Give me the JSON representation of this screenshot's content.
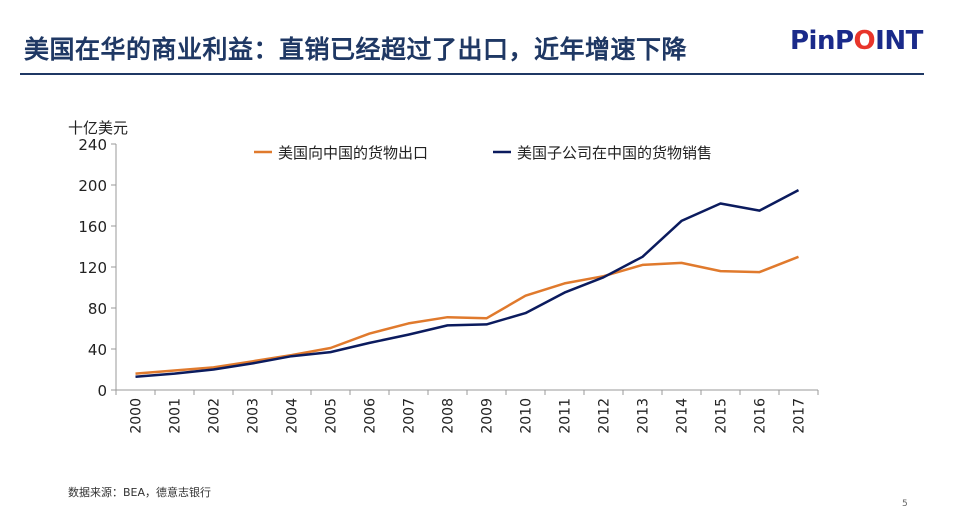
{
  "slide": {
    "title": "美国在华的商业利益：直销已经超过了出口，近年增速下降",
    "logo_prefix": "PinP",
    "logo_o": "O",
    "logo_suffix": "INT",
    "source": "数据来源：BEA，德意志银行",
    "page_number": "5"
  },
  "colors": {
    "title": "#1f3864",
    "exports": "#e07a2d",
    "affiliates": "#0b1b5e",
    "logo_blue": "#1a2a8a",
    "logo_red": "#e8352b"
  },
  "chart_data": {
    "type": "line",
    "title": "",
    "ylabel": "十亿美元",
    "xlabel": "",
    "ylim": [
      0,
      240
    ],
    "yticks": [
      0,
      40,
      80,
      120,
      160,
      200,
      240
    ],
    "grid": false,
    "legend_position": "top",
    "x": [
      "2000",
      "2001",
      "2002",
      "2003",
      "2004",
      "2005",
      "2006",
      "2007",
      "2008",
      "2009",
      "2010",
      "2011",
      "2012",
      "2013",
      "2014",
      "2015",
      "2016",
      "2017"
    ],
    "series": [
      {
        "name": "美国向中国的货物出口",
        "color": "#e07a2d",
        "values": [
          16,
          19,
          22,
          28,
          34,
          41,
          55,
          65,
          71,
          70,
          92,
          104,
          111,
          122,
          124,
          116,
          115,
          130
        ]
      },
      {
        "name": "美国子公司在中国的货物销售",
        "color": "#0b1b5e",
        "values": [
          13,
          16,
          20,
          26,
          33,
          37,
          46,
          54,
          63,
          64,
          75,
          95,
          110,
          130,
          165,
          182,
          175,
          195
        ]
      }
    ]
  }
}
